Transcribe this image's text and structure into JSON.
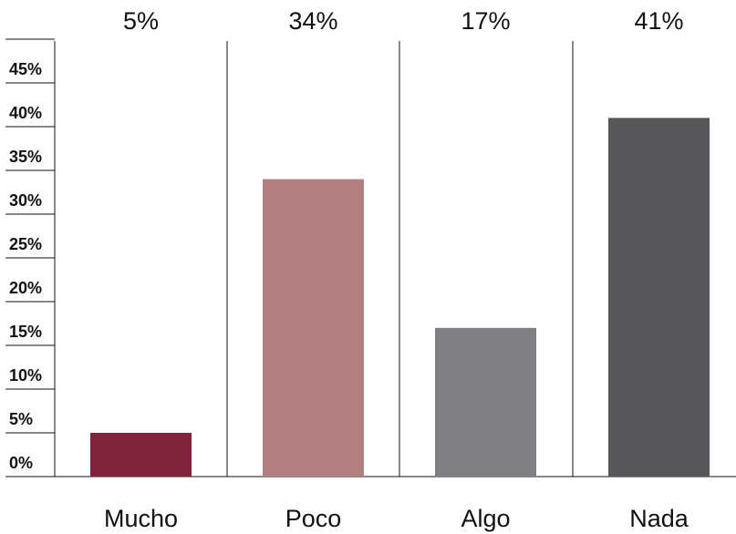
{
  "chart_data": {
    "type": "bar",
    "categories": [
      "Mucho",
      "Poco",
      "Algo",
      "Nada"
    ],
    "values": [
      5,
      34,
      17,
      41
    ],
    "data_labels": [
      "5%",
      "34%",
      "17%",
      "41%"
    ],
    "colors": [
      "#80233d",
      "#b38082",
      "#808084",
      "#575759"
    ],
    "y_ticks": [
      0,
      5,
      10,
      15,
      20,
      25,
      30,
      35,
      40,
      45
    ],
    "y_tick_labels": [
      "0%",
      "5%",
      "10%",
      "15%",
      "20%",
      "25%",
      "30%",
      "35%",
      "40%",
      "45%"
    ],
    "ylim": [
      0,
      50
    ],
    "title": "",
    "xlabel": "",
    "ylabel": "",
    "grid": false,
    "legend": "none",
    "data_label_position": "top"
  }
}
